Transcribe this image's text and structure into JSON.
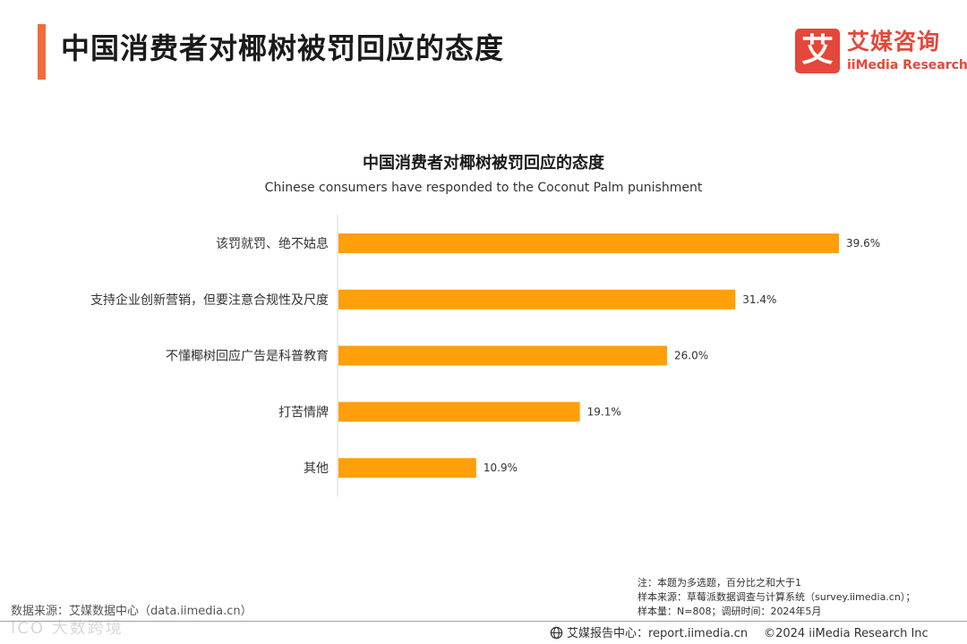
{
  "colors": {
    "accent": "#F26B3A",
    "bar": "#FF9F0A",
    "brand_red": "#E5473A"
  },
  "header": {
    "title": "中国消费者对椰树被罚回应的态度"
  },
  "logo": {
    "mark": "艾",
    "name_cn": "艾媒咨询",
    "name_en": "iiMedia Research"
  },
  "chart_data": {
    "type": "bar",
    "orientation": "horizontal",
    "title": "中国消费者对椰树被罚回应的态度",
    "subtitle": "Chinese consumers have responded to the Coconut Palm punishment",
    "categories": [
      "该罚就罚、绝不姑息",
      "支持企业创新营销，但要注意合规性及尺度",
      "不懂椰树回应广告是科普教育",
      "打苦情牌",
      "其他"
    ],
    "values": [
      39.6,
      31.4,
      26.0,
      19.1,
      10.9
    ],
    "value_labels": [
      "39.6%",
      "31.4%",
      "26.0%",
      "19.1%",
      "10.9%"
    ],
    "unit": "%",
    "xlim": [
      0,
      40
    ],
    "xlabel": "",
    "ylabel": "",
    "grid": false
  },
  "note": {
    "line1": "注：本题为多选题，百分比之和大于1",
    "line2": "样本来源：草莓派数据调查与计算系统（survey.iimedia.cn）；",
    "line3": "样本量：N=808；调研时间：2024年5月"
  },
  "source": "数据来源：艾媒数据中心（data.iimedia.cn）",
  "watermark": "ICO 大数跨境",
  "footer": {
    "report": "艾媒报告中心：report.iimedia.cn",
    "copyright": "©2024  iiMedia Research  Inc"
  }
}
